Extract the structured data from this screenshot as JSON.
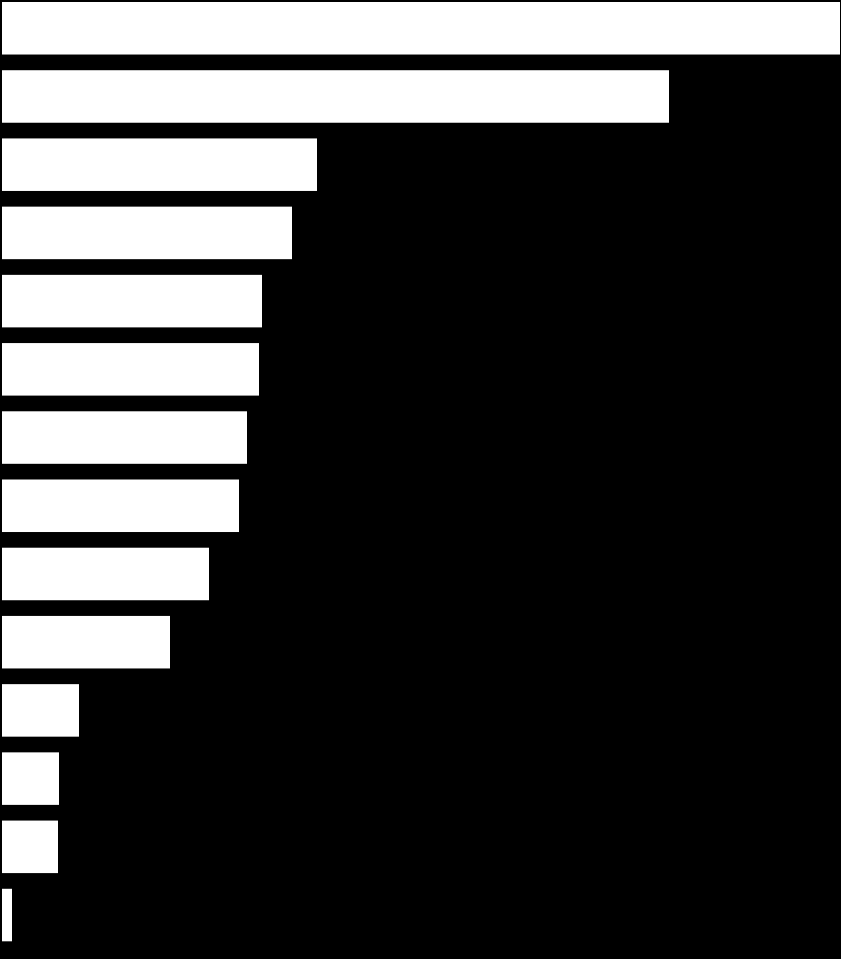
{
  "chart_data": {
    "type": "bar",
    "orientation": "horizontal",
    "values": [
      838,
      667,
      315,
      290,
      260,
      257,
      245,
      237,
      207,
      168,
      77,
      57,
      56,
      10
    ],
    "xlim": [
      0,
      838
    ],
    "color": "#ffffff",
    "background": "#000000"
  }
}
